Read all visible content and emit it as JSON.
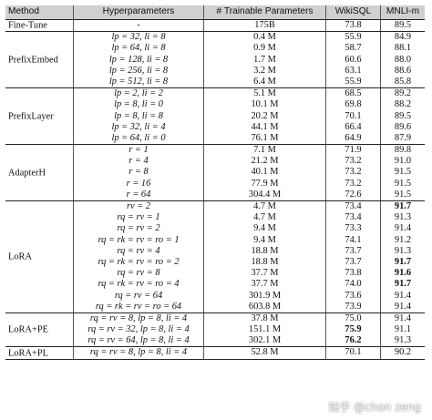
{
  "header": {
    "method": "Method",
    "hyperparameters": "Hyperparameters",
    "trainable": "# Trainable Parameters",
    "wikisql": "WikiSQL",
    "mnli": "MNLI-m"
  },
  "groups": [
    {
      "method": "Fine-Tune",
      "method_bold": true,
      "rows": [
        {
          "hp": "-",
          "params": "175B",
          "wikisql": "73.8",
          "mnli": "89.5"
        }
      ]
    },
    {
      "method": "PrefixEmbed",
      "rows": [
        {
          "hp": "lp = 32, li = 8",
          "params": "0.4 M",
          "wikisql": "55.9",
          "mnli": "84.9"
        },
        {
          "hp": "lp = 64, li = 8",
          "params": "0.9 M",
          "wikisql": "58.7",
          "mnli": "88.1"
        },
        {
          "hp": "lp = 128, li = 8",
          "params": "1.7 M",
          "wikisql": "60.6",
          "mnli": "88.0"
        },
        {
          "hp": "lp = 256, li = 8",
          "params": "3.2 M",
          "wikisql": "63.1",
          "mnli": "88.6"
        },
        {
          "hp": "lp = 512, li = 8",
          "params": "6.4 M",
          "wikisql": "55.9",
          "mnli": "85.8"
        }
      ]
    },
    {
      "method": "PrefixLayer",
      "rows": [
        {
          "hp": "lp = 2, li = 2",
          "params": "5.1 M",
          "wikisql": "68.5",
          "mnli": "89.2"
        },
        {
          "hp": "lp = 8, li = 0",
          "params": "10.1 M",
          "wikisql": "69.8",
          "mnli": "88.2"
        },
        {
          "hp": "lp = 8, li = 8",
          "params": "20.2 M",
          "wikisql": "70.1",
          "mnli": "89.5"
        },
        {
          "hp": "lp = 32, li = 4",
          "params": "44.1 M",
          "wikisql": "66.4",
          "mnli": "89.6"
        },
        {
          "hp": "lp = 64, li = 0",
          "params": "76.1 M",
          "wikisql": "64.9",
          "mnli": "87.9"
        }
      ]
    },
    {
      "method": "AdapterH",
      "rows": [
        {
          "hp": "r = 1",
          "params": "7.1 M",
          "wikisql": "71.9",
          "mnli": "89.8"
        },
        {
          "hp": "r = 4",
          "params": "21.2 M",
          "wikisql": "73.2",
          "mnli": "91.0"
        },
        {
          "hp": "r = 8",
          "params": "40.1 M",
          "wikisql": "73.2",
          "mnli": "91.5"
        },
        {
          "hp": "r = 16",
          "params": "77.9 M",
          "wikisql": "73.2",
          "mnli": "91.5"
        },
        {
          "hp": "r = 64",
          "params": "304.4 M",
          "wikisql": "72.6",
          "mnli": "91.5"
        }
      ]
    },
    {
      "method": "LoRA",
      "rows": [
        {
          "hp": "rv = 2",
          "params": "4.7 M",
          "wikisql": "73.4",
          "mnli": "91.7",
          "mnli_bold": true
        },
        {
          "hp": "rq = rv = 1",
          "params": "4.7 M",
          "wikisql": "73.4",
          "mnli": "91.3"
        },
        {
          "hp": "rq = rv = 2",
          "params": "9.4 M",
          "wikisql": "73.3",
          "mnli": "91.4"
        },
        {
          "hp": "rq = rk = rv = ro = 1",
          "params": "9.4 M",
          "wikisql": "74.1",
          "mnli": "91.2"
        },
        {
          "hp": "rq = rv = 4",
          "params": "18.8 M",
          "wikisql": "73.7",
          "mnli": "91.3"
        },
        {
          "hp": "rq = rk = rv = ro = 2",
          "params": "18.8 M",
          "wikisql": "73.7",
          "mnli": "91.7",
          "mnli_bold": true
        },
        {
          "hp": "rq = rv = 8",
          "params": "37.7 M",
          "wikisql": "73.8",
          "mnli": "91.6",
          "mnli_bold": true
        },
        {
          "hp": "rq = rk = rv = ro = 4",
          "params": "37.7 M",
          "wikisql": "74.0",
          "mnli": "91.7",
          "mnli_bold": true
        },
        {
          "hp": "rq = rv = 64",
          "params": "301.9 M",
          "wikisql": "73.6",
          "mnli": "91.4"
        },
        {
          "hp": "rq = rk = rv = ro = 64",
          "params": "603.8 M",
          "wikisql": "73.9",
          "mnli": "91.4"
        }
      ]
    },
    {
      "method": "LoRA+PE",
      "rows": [
        {
          "hp": "rq = rv = 8, lp = 8, li = 4",
          "params": "37.8 M",
          "wikisql": "75.0",
          "mnli": "91.4"
        },
        {
          "hp": "rq = rv = 32, lp = 8, li = 4",
          "params": "151.1 M",
          "wikisql": "75.9",
          "wikisql_bold": true,
          "mnli": "91.1"
        },
        {
          "hp": "rq = rv = 64, lp = 8, li = 4",
          "params": "302.1 M",
          "wikisql": "76.2",
          "wikisql_bold": true,
          "mnli": "91.3"
        }
      ]
    },
    {
      "method": "LoRA+PL",
      "rows": [
        {
          "hp": "rq = rv = 8, lp = 8, li = 4",
          "params": "52.8 M",
          "wikisql": "70.1",
          "mnli": "90.2"
        }
      ]
    }
  ],
  "watermark": "知乎 @chon zeng"
}
